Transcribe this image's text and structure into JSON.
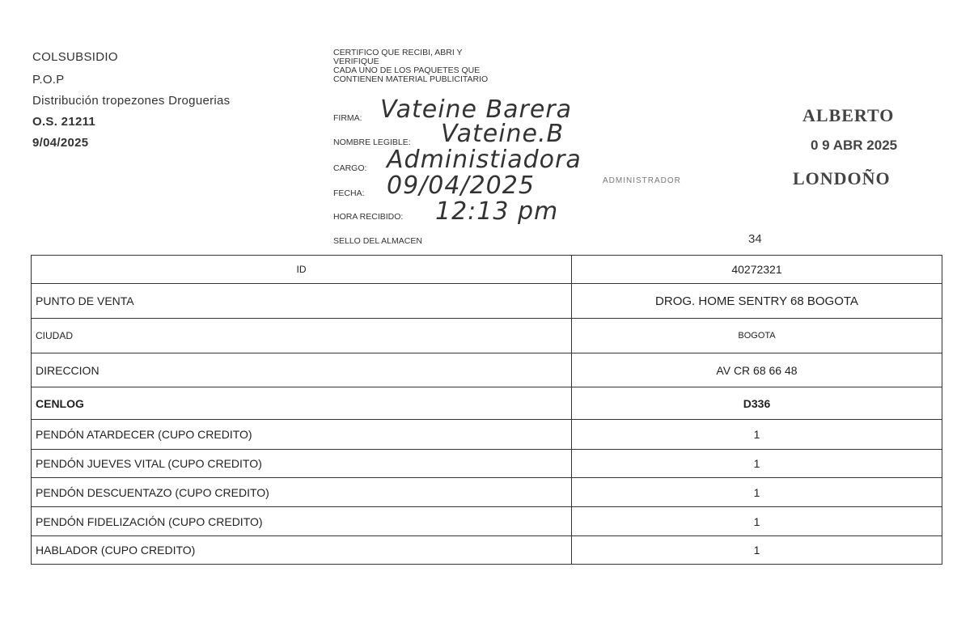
{
  "header": {
    "lines": [
      "COLSUBSIDIO",
      "P.O.P",
      "Distribución tropezones Droguerias",
      "O.S. 21211",
      "9/04/2025"
    ]
  },
  "certificate": {
    "lines": [
      "CERTIFICO QUE RECIBI, ABRI Y",
      "VERIFIQUE",
      "CADA  UNO DE LOS PAQUETES QUE",
      "CONTIENEN MATERIAL PUBLICITARIO"
    ],
    "fields": [
      {
        "label": "FIRMA:",
        "value": "Vateine Barera"
      },
      {
        "label": "NOMBRE LEGIBLE:",
        "value": "Vateine.B"
      },
      {
        "label": "CARGO:",
        "value": "Administiadora"
      },
      {
        "label": "FECHA:",
        "value": "09/04/2025"
      },
      {
        "label": "HORA RECIBIDO:",
        "value": "12:13 pm"
      },
      {
        "label": "SELLO DEL ALMACEN",
        "value": ""
      }
    ],
    "stamp_sub": "ADMINISTRADOR"
  },
  "stamp": {
    "line1": "ALBERTO",
    "date": "0 9 ABR 2025",
    "line2": "LONDOÑO"
  },
  "page_number": "34",
  "table": {
    "rows": [
      {
        "label": "ID",
        "value": "40272321"
      },
      {
        "label": "PUNTO DE VENTA",
        "value": "DROG. HOME SENTRY 68 BOGOTA"
      },
      {
        "label": "CIUDAD",
        "value": "BOGOTA"
      },
      {
        "label": "DIRECCION",
        "value": "AV CR 68 66 48"
      },
      {
        "label": "CENLOG",
        "value": "D336"
      },
      {
        "label": "PENDÓN  ATARDECER (CUPO CREDITO)",
        "value": "1"
      },
      {
        "label": "PENDÓN JUEVES VITAL (CUPO CREDITO)",
        "value": "1"
      },
      {
        "label": "PENDÓN DESCUENTAZO (CUPO CREDITO)",
        "value": "1"
      },
      {
        "label": "PENDÓN FIDELIZACIÓN (CUPO CREDITO)",
        "value": "1"
      },
      {
        "label": "HABLADOR (CUPO CREDITO)",
        "value": "1"
      }
    ]
  }
}
